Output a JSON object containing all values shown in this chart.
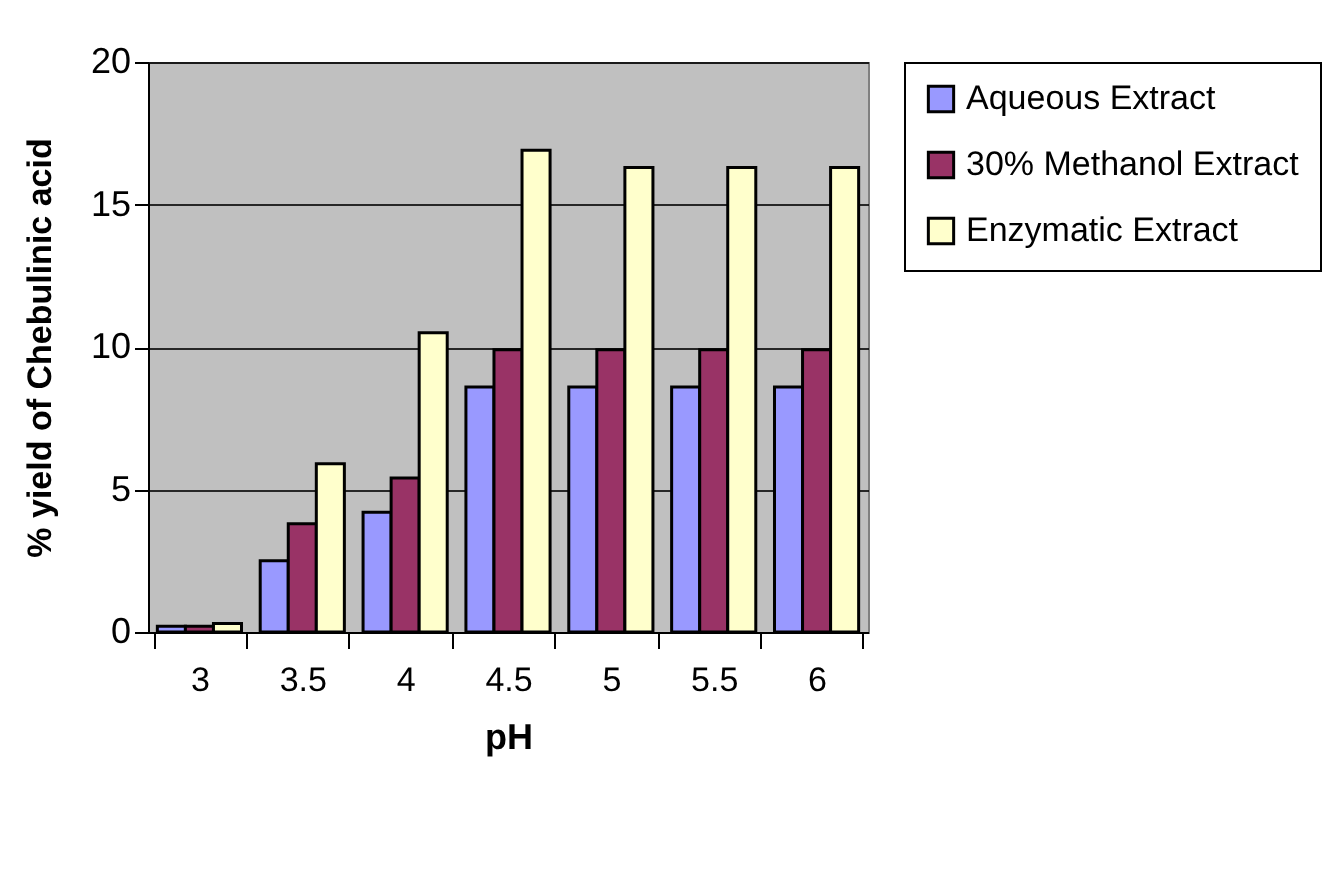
{
  "chart_data": {
    "type": "bar",
    "xlabel": "pH",
    "ylabel": "% yield of Chebulinic acid",
    "categories": [
      "3",
      "3.5",
      "4",
      "4.5",
      "5",
      "5.5",
      "6"
    ],
    "series": [
      {
        "name": "Aqueous Extract",
        "color": "#9999ff",
        "values": [
          0.2,
          2.5,
          4.2,
          8.6,
          8.6,
          8.6,
          8.6
        ]
      },
      {
        "name": "30% Methanol Extract",
        "color": "#993366",
        "values": [
          0.2,
          3.8,
          5.4,
          9.9,
          9.9,
          9.9,
          9.9
        ]
      },
      {
        "name": "Enzymatic Extract",
        "color": "#ffffcc",
        "values": [
          0.3,
          5.9,
          10.5,
          16.9,
          16.3,
          16.3,
          16.3
        ]
      }
    ],
    "ylim": [
      0,
      20
    ],
    "yticks": [
      0,
      5,
      10,
      15,
      20
    ],
    "grid": "y",
    "legend": "right"
  }
}
